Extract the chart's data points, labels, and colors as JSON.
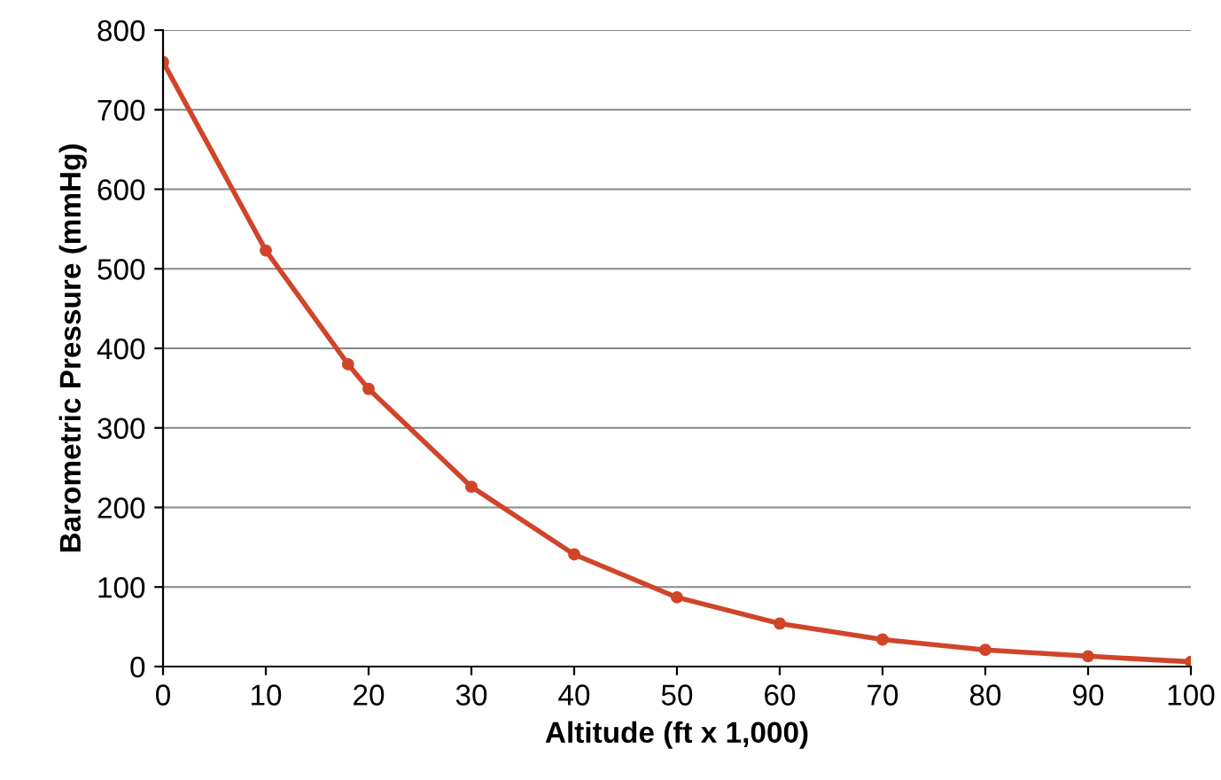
{
  "chart_data": {
    "type": "line",
    "xlabel": "Altitude (ft x 1,000)",
    "ylabel": "Barometric Pressure (mmHg)",
    "series": [
      {
        "color": "#d0452a",
        "x": [
          0,
          10,
          18,
          20,
          30,
          40,
          50,
          60,
          70,
          80,
          90,
          100
        ],
        "values": [
          760,
          523,
          380,
          349,
          226,
          141,
          87,
          54,
          34,
          21,
          13,
          6
        ]
      }
    ],
    "xlim": [
      0,
      100
    ],
    "xticks": [
      0,
      10,
      20,
      30,
      40,
      50,
      60,
      70,
      80,
      90,
      100
    ],
    "ylim": [
      0,
      800
    ],
    "yticks": [
      0,
      100,
      200,
      300,
      400,
      500,
      600,
      700,
      800
    ],
    "grid": "y",
    "marker": "circle",
    "line_style": "solid",
    "legend": false
  }
}
